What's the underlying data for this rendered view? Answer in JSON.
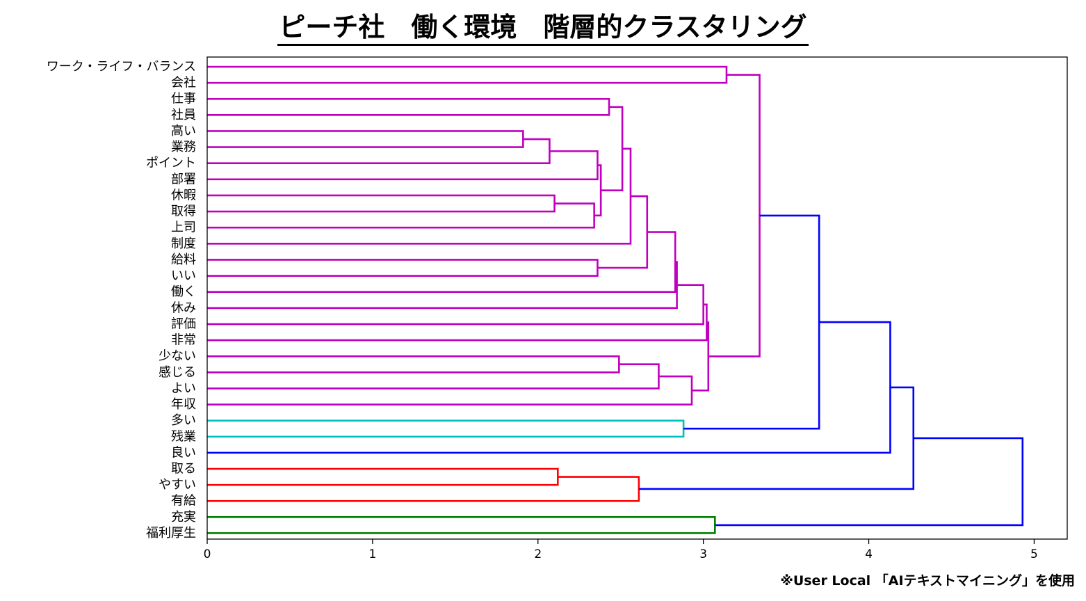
{
  "title": "ピーチ社　働く環境　階層的クラスタリング",
  "credit": "※User Local 「AIテキストマイニング」を使用",
  "chart_data": {
    "type": "dendrogram",
    "title": "ピーチ社　働く環境　階層的クラスタリング",
    "orientation": "left",
    "xlim": [
      0,
      5.2
    ],
    "xticks": [
      0,
      1,
      2,
      3,
      4,
      5
    ],
    "grid": false,
    "leaves": [
      "ワーク・ライフ・バランス",
      "会社",
      "仕事",
      "社員",
      "高い",
      "業務",
      "ポイント",
      "部署",
      "休暇",
      "取得",
      "上司",
      "制度",
      "給料",
      "いい",
      "働く",
      "休み",
      "評価",
      "非常",
      "少ない",
      "感じる",
      "よい",
      "年収",
      "多い",
      "残業",
      "良い",
      "取る",
      "やすい",
      "有給",
      "充実",
      "福利厚生"
    ],
    "cluster_colors": {
      "purple": "#bf00bf",
      "cyan": "#00bfbf",
      "red": "#ff0000",
      "green": "#008000",
      "link": "#0000ff"
    },
    "merges": [
      {
        "id": "m1",
        "left": "高い",
        "right": "業務",
        "height": 1.91,
        "color": "#bf00bf"
      },
      {
        "id": "m2",
        "left": "m1",
        "right": "ポイント",
        "height": 2.07,
        "color": "#bf00bf"
      },
      {
        "id": "m3",
        "left": "休暇",
        "right": "取得",
        "height": 2.1,
        "color": "#bf00bf"
      },
      {
        "id": "m4",
        "left": "取る",
        "right": "やすい",
        "height": 2.12,
        "color": "#ff0000"
      },
      {
        "id": "m5",
        "left": "m3",
        "right": "上司",
        "height": 2.34,
        "color": "#bf00bf"
      },
      {
        "id": "m6",
        "left": "給料",
        "right": "いい",
        "height": 2.36,
        "color": "#bf00bf"
      },
      {
        "id": "m7",
        "left": "m2",
        "right": "部署",
        "height": 2.36,
        "color": "#bf00bf"
      },
      {
        "id": "m8",
        "left": "m7",
        "right": "m5",
        "height": 2.38,
        "color": "#bf00bf"
      },
      {
        "id": "m9",
        "left": "仕事",
        "right": "社員",
        "height": 2.43,
        "color": "#bf00bf"
      },
      {
        "id": "m10",
        "left": "少ない",
        "right": "感じる",
        "height": 2.49,
        "color": "#bf00bf"
      },
      {
        "id": "m11",
        "left": "m9",
        "right": "m8",
        "height": 2.51,
        "color": "#bf00bf"
      },
      {
        "id": "m12",
        "left": "m11",
        "right": "制度",
        "height": 2.56,
        "color": "#bf00bf"
      },
      {
        "id": "m13",
        "left": "m4",
        "right": "有給",
        "height": 2.61,
        "color": "#ff0000"
      },
      {
        "id": "m14",
        "left": "m12",
        "right": "m6",
        "height": 2.66,
        "color": "#bf00bf"
      },
      {
        "id": "m15",
        "left": "m10",
        "right": "よい",
        "height": 2.73,
        "color": "#bf00bf"
      },
      {
        "id": "m16",
        "left": "m14",
        "right": "働く",
        "height": 2.83,
        "color": "#bf00bf"
      },
      {
        "id": "m17",
        "left": "m16",
        "right": "休み",
        "height": 2.84,
        "color": "#bf00bf"
      },
      {
        "id": "m18",
        "left": "多い",
        "right": "残業",
        "height": 2.88,
        "color": "#00bfbf"
      },
      {
        "id": "m19",
        "left": "m15",
        "right": "年収",
        "height": 2.93,
        "color": "#bf00bf"
      },
      {
        "id": "m20",
        "left": "m17",
        "right": "評価",
        "height": 3.0,
        "color": "#bf00bf"
      },
      {
        "id": "m21",
        "left": "m20",
        "right": "非常",
        "height": 3.02,
        "color": "#bf00bf"
      },
      {
        "id": "m22",
        "left": "m21",
        "right": "m19",
        "height": 3.03,
        "color": "#bf00bf"
      },
      {
        "id": "m23",
        "left": "充実",
        "right": "福利厚生",
        "height": 3.07,
        "color": "#008000"
      },
      {
        "id": "m24",
        "left": "ワーク・ライフ・バランス",
        "right": "会社",
        "height": 3.14,
        "color": "#bf00bf"
      },
      {
        "id": "m25",
        "left": "m24",
        "right": "m22",
        "height": 3.34,
        "color": "#bf00bf"
      },
      {
        "id": "m26",
        "left": "m25",
        "right": "m18",
        "height": 3.7,
        "color": "#0000ff"
      },
      {
        "id": "m27",
        "left": "m26",
        "right": "良い",
        "height": 4.13,
        "color": "#0000ff"
      },
      {
        "id": "m28",
        "left": "m27",
        "right": "m13",
        "height": 4.27,
        "color": "#0000ff"
      },
      {
        "id": "m29",
        "left": "m28",
        "right": "m23",
        "height": 4.93,
        "color": "#0000ff"
      }
    ]
  }
}
